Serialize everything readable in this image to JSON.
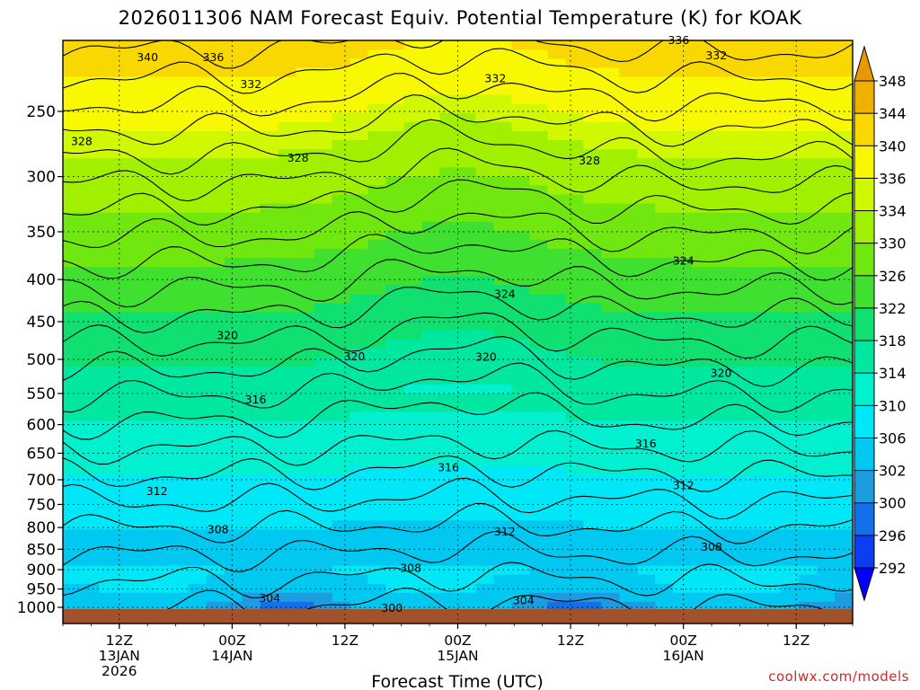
{
  "chart_data": {
    "type": "heatmap",
    "title": "2026011306 NAM Forecast Equiv. Potential Temperature (K) for KOAK",
    "xlabel": "Forecast Time (UTC)",
    "ylabel": "",
    "y_ticks": [
      250,
      300,
      350,
      400,
      450,
      500,
      550,
      600,
      650,
      700,
      750,
      800,
      850,
      900,
      950,
      1000
    ],
    "ylim": [
      1000,
      200
    ],
    "x_range_hours": [
      0,
      84
    ],
    "x_ticks": [
      {
        "hour": 6,
        "lines": [
          "12Z",
          "13JAN",
          "2026"
        ]
      },
      {
        "hour": 18,
        "lines": [
          "00Z",
          "14JAN"
        ]
      },
      {
        "hour": 30,
        "lines": [
          "12Z"
        ]
      },
      {
        "hour": 42,
        "lines": [
          "00Z",
          "15JAN"
        ]
      },
      {
        "hour": 54,
        "lines": [
          "12Z"
        ]
      },
      {
        "hour": 66,
        "lines": [
          "00Z",
          "16JAN"
        ]
      },
      {
        "hour": 78,
        "lines": [
          "12Z"
        ]
      }
    ],
    "colorbar": {
      "levels": [
        292,
        296,
        300,
        302,
        306,
        310,
        314,
        318,
        322,
        326,
        330,
        334,
        336,
        340,
        344,
        348
      ],
      "colors": [
        "#0000ff",
        "#0a3ef0",
        "#1470e8",
        "#1e9ce0",
        "#00c8f0",
        "#00e8f8",
        "#00f0d0",
        "#00e8a0",
        "#10e070",
        "#40e030",
        "#70e810",
        "#a0f000",
        "#d0f800",
        "#f8f800",
        "#f8d800",
        "#f0b000",
        "#e89800"
      ]
    },
    "contour_labels": [
      {
        "value": "336",
        "hour": 65.5,
        "p": 205
      },
      {
        "value": "340",
        "hour": 9,
        "p": 215
      },
      {
        "value": "336",
        "hour": 16,
        "p": 215
      },
      {
        "value": "332",
        "hour": 69.5,
        "p": 214
      },
      {
        "value": "332",
        "hour": 20,
        "p": 232
      },
      {
        "value": "332",
        "hour": 46,
        "p": 228
      },
      {
        "value": "328",
        "hour": 2,
        "p": 272
      },
      {
        "value": "328",
        "hour": 25,
        "p": 285
      },
      {
        "value": "328",
        "hour": 56,
        "p": 287
      },
      {
        "value": "324",
        "hour": 66,
        "p": 380
      },
      {
        "value": "324",
        "hour": 47,
        "p": 417
      },
      {
        "value": "320",
        "hour": 17.5,
        "p": 468
      },
      {
        "value": "320",
        "hour": 31,
        "p": 496
      },
      {
        "value": "320",
        "hour": 45,
        "p": 497
      },
      {
        "value": "320",
        "hour": 70,
        "p": 520
      },
      {
        "value": "316",
        "hour": 20.5,
        "p": 560
      },
      {
        "value": "316",
        "hour": 62,
        "p": 633
      },
      {
        "value": "316",
        "hour": 41,
        "p": 677
      },
      {
        "value": "312",
        "hour": 10,
        "p": 723
      },
      {
        "value": "312",
        "hour": 66,
        "p": 712
      },
      {
        "value": "312",
        "hour": 47,
        "p": 810
      },
      {
        "value": "308",
        "hour": 16.5,
        "p": 805
      },
      {
        "value": "308",
        "hour": 69,
        "p": 845
      },
      {
        "value": "308",
        "hour": 37,
        "p": 897
      },
      {
        "value": "304",
        "hour": 22,
        "p": 975
      },
      {
        "value": "304",
        "hour": 49,
        "p": 981
      },
      {
        "value": "300",
        "hour": 35,
        "p": 1003
      }
    ]
  },
  "credit": "coolwx.com/models"
}
